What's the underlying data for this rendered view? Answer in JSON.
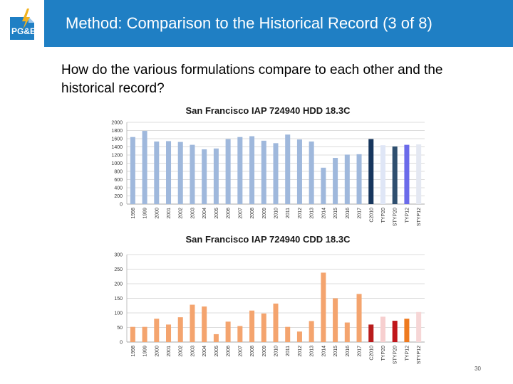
{
  "slide": {
    "title": "Method: Comparison to the Historical Record (3 of 8)",
    "question": "How do the various formulations compare to each other and the historical record?",
    "page_number": "30",
    "logo_text": "PG&E"
  },
  "chart_data": [
    {
      "type": "bar",
      "title": "San Francisco IAP 724940   HDD 18.3C",
      "categories": [
        "1998",
        "1999",
        "2000",
        "2001",
        "2002",
        "2003",
        "2004",
        "2005",
        "2006",
        "2007",
        "2008",
        "2009",
        "2010",
        "2011",
        "2012",
        "2013",
        "2014",
        "2015",
        "2016",
        "2017",
        "C2010",
        "TYP20",
        "STYP20",
        "TYP12",
        "STYP12"
      ],
      "values": [
        1640,
        1790,
        1530,
        1540,
        1520,
        1450,
        1340,
        1360,
        1590,
        1640,
        1660,
        1550,
        1490,
        1700,
        1580,
        1530,
        890,
        1130,
        1210,
        1220,
        1590,
        1440,
        1410,
        1450,
        1460
      ],
      "colors": [
        "#9fb8dc",
        "#9fb8dc",
        "#9fb8dc",
        "#9fb8dc",
        "#9fb8dc",
        "#9fb8dc",
        "#9fb8dc",
        "#9fb8dc",
        "#9fb8dc",
        "#9fb8dc",
        "#9fb8dc",
        "#9fb8dc",
        "#9fb8dc",
        "#9fb8dc",
        "#9fb8dc",
        "#9fb8dc",
        "#9fb8dc",
        "#9fb8dc",
        "#9fb8dc",
        "#9fb8dc",
        "#17365d",
        "#dfe6f6",
        "#2f4f6f",
        "#6b6bea",
        "#e4e8f2"
      ],
      "ylim": [
        0,
        2000
      ],
      "yticks": [
        0,
        200,
        400,
        600,
        800,
        1000,
        1200,
        1400,
        1600,
        1800,
        2000
      ],
      "grid": true,
      "xlabel": "",
      "ylabel": ""
    },
    {
      "type": "bar",
      "title": "San Francisco IAP 724940   CDD 18.3C",
      "categories": [
        "1998",
        "1999",
        "2000",
        "2001",
        "2002",
        "2003",
        "2004",
        "2005",
        "2006",
        "2007",
        "2008",
        "2009",
        "2010",
        "2011",
        "2012",
        "2013",
        "2014",
        "2015",
        "2016",
        "2017",
        "C2010",
        "TYP20",
        "STYP20",
        "TYP12",
        "STYP12"
      ],
      "values": [
        52,
        52,
        80,
        60,
        85,
        128,
        122,
        27,
        70,
        55,
        108,
        98,
        132,
        52,
        36,
        72,
        238,
        150,
        67,
        165,
        60,
        87,
        73,
        80,
        103
      ],
      "colors": [
        "#f4a46e",
        "#f4a46e",
        "#f4a46e",
        "#f4a46e",
        "#f4a46e",
        "#f4a46e",
        "#f4a46e",
        "#f4a46e",
        "#f4a46e",
        "#f4a46e",
        "#f4a46e",
        "#f4a46e",
        "#f4a46e",
        "#f4a46e",
        "#f4a46e",
        "#f4a46e",
        "#f4a46e",
        "#f4a46e",
        "#f4a46e",
        "#f4a46e",
        "#b91c1c",
        "#f7cfcf",
        "#c0161b",
        "#ee7a1f",
        "#f6d6d6"
      ],
      "ylim": [
        0,
        300
      ],
      "yticks": [
        0,
        50,
        100,
        150,
        200,
        250,
        300
      ],
      "grid": true,
      "xlabel": "",
      "ylabel": ""
    }
  ]
}
